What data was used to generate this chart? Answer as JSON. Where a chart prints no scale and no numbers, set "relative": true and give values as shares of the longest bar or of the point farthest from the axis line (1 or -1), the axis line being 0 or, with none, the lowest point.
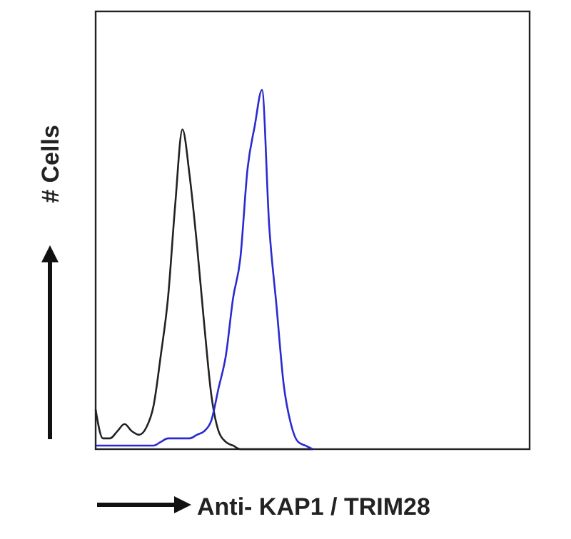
{
  "chart_data": {
    "type": "line",
    "relative": true,
    "xlabel": "Anti- KAP1 / TRIM28",
    "ylabel": "# Cells",
    "categories": [
      null,
      null,
      null,
      null,
      null,
      null,
      null,
      null,
      null,
      null,
      null,
      null,
      null,
      null,
      null,
      null,
      null,
      null,
      null,
      null,
      null,
      null,
      null,
      null,
      null,
      null,
      null,
      null,
      null,
      null,
      null,
      null,
      null,
      null,
      null,
      null,
      null,
      null,
      null,
      null,
      null,
      null,
      null,
      null,
      null,
      null,
      null,
      null,
      null,
      null,
      null,
      null,
      null,
      null,
      null,
      null,
      null,
      null,
      null,
      null,
      null
    ],
    "series": [
      {
        "color": "#222222",
        "values": [
          0.11,
          0.03,
          0.03,
          0.05,
          0.07,
          0.05,
          0.04,
          0.06,
          0.12,
          0.26,
          0.42,
          0.68,
          0.89,
          0.76,
          0.57,
          0.35,
          0.15,
          0.05,
          0.02,
          0.01,
          0,
          0,
          0,
          0,
          0,
          0,
          0,
          0,
          0,
          0,
          0,
          null,
          null,
          null,
          null,
          null,
          null,
          null,
          null,
          null,
          null,
          null,
          null,
          null,
          null,
          null,
          null,
          null,
          null,
          null,
          null,
          null,
          null,
          null,
          null,
          null,
          null,
          null,
          null,
          null,
          null
        ]
      },
      {
        "color": "#2a2ad0",
        "values": [
          0.01,
          0.01,
          0.01,
          0.01,
          0.01,
          0.01,
          0.01,
          0.01,
          0.01,
          0.02,
          0.03,
          0.03,
          0.03,
          0.03,
          0.04,
          0.05,
          0.08,
          0.17,
          0.26,
          0.42,
          0.53,
          0.78,
          0.9,
          1,
          0.62,
          0.4,
          0.18,
          0.07,
          0.02,
          0.01,
          0,
          null,
          null,
          null,
          null,
          null,
          null,
          null,
          null,
          null,
          null,
          null,
          null,
          null,
          null,
          null,
          null,
          null,
          null,
          null,
          null,
          null,
          null,
          null,
          null,
          null,
          null,
          null,
          null,
          null,
          null
        ]
      }
    ]
  }
}
